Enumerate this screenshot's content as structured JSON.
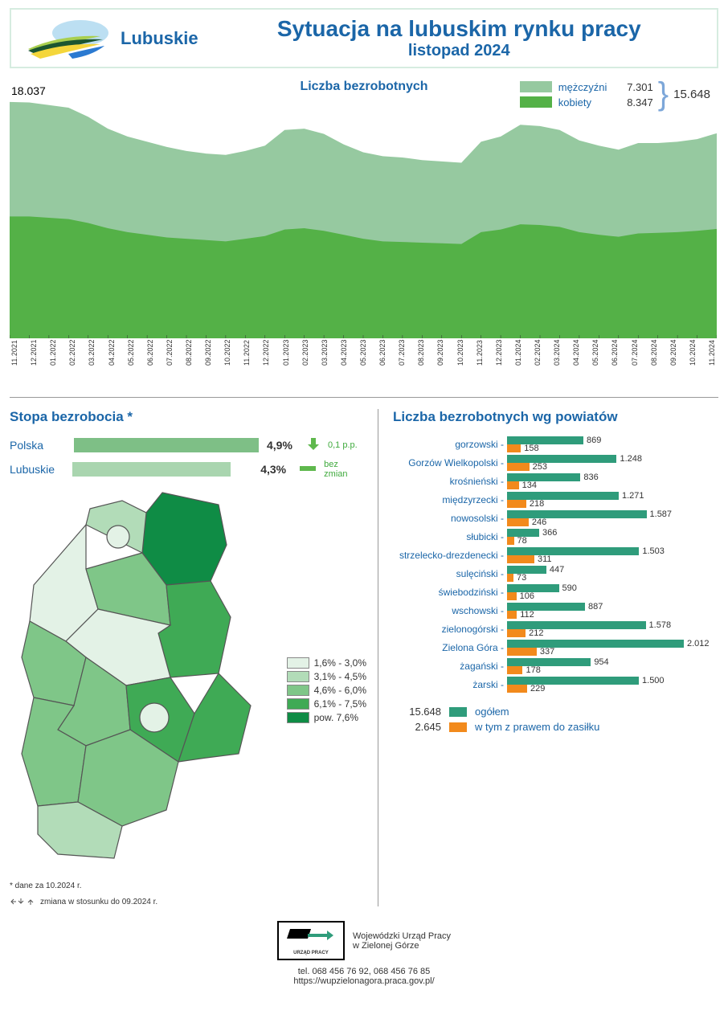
{
  "header": {
    "region": "Lubuskie",
    "title": "Sytuacja na lubuskim rynku pracy",
    "subtitle": "listopad 2024"
  },
  "area_chart": {
    "title": "Liczba bezrobotnych",
    "peak_label": "18.037",
    "legend": {
      "men_label": "mężczyźni",
      "men_value": "7.301",
      "women_label": "kobiety",
      "women_value": "8.347",
      "total": "15.648"
    },
    "colors": {
      "men": "#96c9a0",
      "women": "#54b147",
      "title": "#1b66a8"
    },
    "y_max": 18037,
    "x_labels": [
      "11.2021",
      "12.2021",
      "01.2022",
      "02.2022",
      "03.2022",
      "04.2022",
      "05.2022",
      "06.2022",
      "07.2022",
      "08.2022",
      "09.2022",
      "10.2022",
      "11.2022",
      "12.2022",
      "01.2023",
      "02.2023",
      "03.2023",
      "04.2023",
      "05.2023",
      "06.2023",
      "07.2023",
      "08.2023",
      "09.2023",
      "10.2023",
      "11.2023",
      "12.2023",
      "01.2024",
      "02.2024",
      "03.2024",
      "04.2024",
      "05.2024",
      "06.2024",
      "07.2024",
      "08.2024",
      "09.2024",
      "10.2024",
      "11.2024"
    ],
    "totals": [
      18037,
      18000,
      17800,
      17600,
      16900,
      16000,
      15400,
      15000,
      14600,
      14300,
      14100,
      14000,
      14300,
      14700,
      15900,
      16000,
      15600,
      14800,
      14200,
      13900,
      13800,
      13600,
      13500,
      13400,
      15000,
      15400,
      16300,
      16200,
      15900,
      15100,
      14700,
      14400,
      14900,
      14900,
      15000,
      15200,
      15648
    ],
    "women": [
      9300,
      9300,
      9200,
      9100,
      8800,
      8400,
      8100,
      7900,
      7700,
      7600,
      7500,
      7400,
      7600,
      7800,
      8300,
      8400,
      8200,
      7900,
      7600,
      7400,
      7350,
      7300,
      7250,
      7200,
      8100,
      8300,
      8700,
      8650,
      8500,
      8100,
      7900,
      7750,
      8000,
      8050,
      8100,
      8200,
      8347
    ]
  },
  "rate_section": {
    "title": "Stopa bezrobocia *",
    "rows": [
      {
        "label": "Polska",
        "value": "4,9%",
        "width_pct": 100,
        "color": "#7ebf86",
        "trend_icon": "down",
        "trend_text": "0,1 p.p."
      },
      {
        "label": "Lubuskie",
        "value": "4,3%",
        "width_pct": 88,
        "color": "#a9d5af",
        "trend_icon": "flat",
        "trend_text": "bez zmian"
      }
    ],
    "footnote1": "* dane za 10.2024 r.",
    "footnote2": "zmiana w stosunku do 09.2024 r."
  },
  "map_legend": {
    "items": [
      {
        "label": "1,6% - 3,0%",
        "color": "#e3f2e6"
      },
      {
        "label": "3,1% - 4,5%",
        "color": "#b2dcb8"
      },
      {
        "label": "4,6% - 6,0%",
        "color": "#7fc688"
      },
      {
        "label": "6,1% - 7,5%",
        "color": "#3faa55"
      },
      {
        "label": "pow. 7,6%",
        "color": "#0f8c45"
      }
    ]
  },
  "powiaty_section": {
    "title": "Liczba bezrobotnych wg powiatów",
    "max": 2012,
    "bar_main_color": "#2f9c7b",
    "bar_sub_color": "#f28a1c",
    "rows": [
      {
        "label": "gorzowski",
        "main": 869,
        "sub": 158,
        "main_txt": "869",
        "sub_txt": "158"
      },
      {
        "label": "Gorzów Wielkopolski",
        "main": 1248,
        "sub": 253,
        "main_txt": "1.248",
        "sub_txt": "253"
      },
      {
        "label": "krośnieński",
        "main": 836,
        "sub": 134,
        "main_txt": "836",
        "sub_txt": "134"
      },
      {
        "label": "międzyrzecki",
        "main": 1271,
        "sub": 218,
        "main_txt": "1.271",
        "sub_txt": "218"
      },
      {
        "label": "nowosolski",
        "main": 1587,
        "sub": 246,
        "main_txt": "1.587",
        "sub_txt": "246"
      },
      {
        "label": "słubicki",
        "main": 366,
        "sub": 78,
        "main_txt": "366",
        "sub_txt": "78"
      },
      {
        "label": "strzelecko-drezdenecki",
        "main": 1503,
        "sub": 311,
        "main_txt": "1.503",
        "sub_txt": "311"
      },
      {
        "label": "sulęciński",
        "main": 447,
        "sub": 73,
        "main_txt": "447",
        "sub_txt": "73"
      },
      {
        "label": "świebodziński",
        "main": 590,
        "sub": 106,
        "main_txt": "590",
        "sub_txt": "106"
      },
      {
        "label": "wschowski",
        "main": 887,
        "sub": 112,
        "main_txt": "887",
        "sub_txt": "112"
      },
      {
        "label": "zielonogórski",
        "main": 1578,
        "sub": 212,
        "main_txt": "1.578",
        "sub_txt": "212"
      },
      {
        "label": "Zielona Góra",
        "main": 2012,
        "sub": 337,
        "main_txt": "2.012",
        "sub_txt": "337"
      },
      {
        "label": "żagański",
        "main": 954,
        "sub": 178,
        "main_txt": "954",
        "sub_txt": "178"
      },
      {
        "label": "żarski",
        "main": 1500,
        "sub": 229,
        "main_txt": "1.500",
        "sub_txt": "229"
      }
    ],
    "totals": {
      "main_val": "15.648",
      "main_label": "ogółem",
      "sub_val": "2.645",
      "sub_label": "w tym z prawem do zasiłku"
    }
  },
  "footer": {
    "inst_line1": "Wojewódzki Urząd Pracy",
    "inst_line2": "w Zielonej Górze",
    "logo_caption": "URZĄD PRACY",
    "tel": "tel. 068 456 76 92,  068 456 76 85",
    "url": "https://wupzielonagora.praca.gov.pl/"
  }
}
